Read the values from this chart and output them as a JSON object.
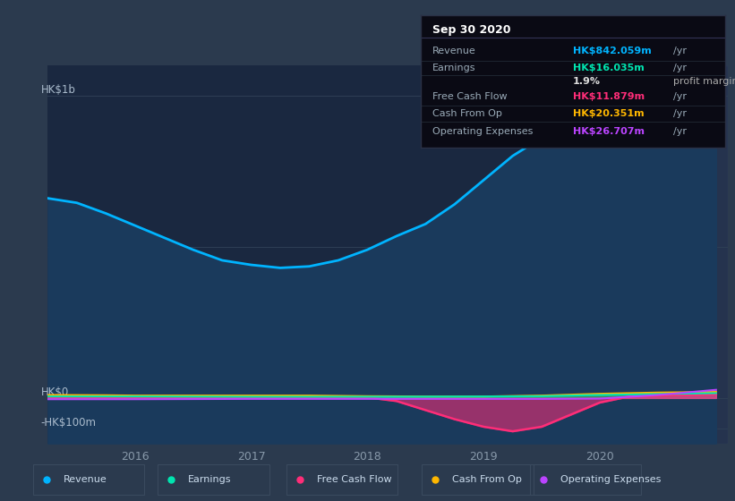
{
  "bg_color": "#2b3a4e",
  "chart_bg_dark": "#1e2d3d",
  "chart_plot_bg": "#1a2840",
  "grid_color": "#2e3f55",
  "y_label_top": "HK$1b",
  "y_label_mid": "HK$0",
  "y_label_bot": "-HK$100m",
  "x_ticks": [
    2016,
    2017,
    2018,
    2019,
    2020
  ],
  "ylim": [
    -150,
    1100
  ],
  "xlim": [
    2015.25,
    2021.1
  ],
  "revenue_color": "#00b4ff",
  "earnings_color": "#00e5b0",
  "fcf_color": "#ff2d78",
  "cashop_color": "#ffb700",
  "opex_color": "#bb44ff",
  "revenue_fill_color": "#1a3a5c",
  "info_title": "Sep 30 2020",
  "info_bg": "#0a0a14",
  "info_border": "#2a3045",
  "info_rows": [
    {
      "label": "Revenue",
      "value": "HK$842.059m",
      "unit": "/yr",
      "color": "#00b4ff"
    },
    {
      "label": "Earnings",
      "value": "HK$16.035m",
      "unit": "/yr",
      "color": "#00e5b0"
    },
    {
      "label": "",
      "value": "1.9%",
      "unit": "profit margin",
      "color": "#dddddd"
    },
    {
      "label": "Free Cash Flow",
      "value": "HK$11.879m",
      "unit": "/yr",
      "color": "#ff2d78"
    },
    {
      "label": "Cash From Op",
      "value": "HK$20.351m",
      "unit": "/yr",
      "color": "#ffb700"
    },
    {
      "label": "Operating Expenses",
      "value": "HK$26.707m",
      "unit": "/yr",
      "color": "#bb44ff"
    }
  ],
  "legend": [
    {
      "label": "Revenue",
      "color": "#00b4ff"
    },
    {
      "label": "Earnings",
      "color": "#00e5b0"
    },
    {
      "label": "Free Cash Flow",
      "color": "#ff2d78"
    },
    {
      "label": "Cash From Op",
      "color": "#ffb700"
    },
    {
      "label": "Operating Expenses",
      "color": "#bb44ff"
    }
  ],
  "revenue_x": [
    2015.25,
    2015.5,
    2015.75,
    2016.0,
    2016.25,
    2016.5,
    2016.75,
    2017.0,
    2017.25,
    2017.5,
    2017.75,
    2018.0,
    2018.25,
    2018.5,
    2018.75,
    2019.0,
    2019.25,
    2019.5,
    2019.75,
    2020.0,
    2020.25,
    2020.5,
    2020.75,
    2021.0
  ],
  "revenue_y": [
    660,
    645,
    610,
    570,
    530,
    490,
    455,
    440,
    430,
    435,
    455,
    490,
    535,
    575,
    640,
    720,
    800,
    860,
    900,
    945,
    970,
    955,
    910,
    842
  ],
  "earnings_x": [
    2015.25,
    2016.0,
    2017.0,
    2018.0,
    2019.0,
    2019.5,
    2020.0,
    2021.0
  ],
  "earnings_y": [
    5,
    5,
    4,
    4,
    5,
    6,
    10,
    16
  ],
  "fcf_x": [
    2015.25,
    2016.0,
    2017.0,
    2017.75,
    2018.0,
    2018.25,
    2018.5,
    2018.75,
    2019.0,
    2019.25,
    2019.5,
    2019.75,
    2020.0,
    2020.25,
    2020.5,
    2021.0
  ],
  "fcf_y": [
    3,
    3,
    3,
    3,
    2,
    -10,
    -40,
    -70,
    -95,
    -110,
    -95,
    -55,
    -15,
    5,
    8,
    12
  ],
  "cashop_x": [
    2015.25,
    2015.75,
    2016.0,
    2016.5,
    2017.0,
    2017.5,
    2018.0,
    2018.5,
    2019.0,
    2019.5,
    2020.0,
    2020.5,
    2021.0
  ],
  "cashop_y": [
    10,
    9,
    8,
    8,
    8,
    8,
    6,
    5,
    5,
    8,
    14,
    18,
    20
  ],
  "opex_x": [
    2015.25,
    2016.0,
    2017.0,
    2018.0,
    2018.5,
    2019.0,
    2019.5,
    2020.0,
    2020.5,
    2021.0
  ],
  "opex_y": [
    -4,
    -4,
    -3,
    -3,
    -3,
    -3,
    -3,
    -2,
    10,
    27
  ],
  "highlight_x_start": 2019.82,
  "highlight_x_end": 2021.1,
  "highlight_alpha": 0.1
}
